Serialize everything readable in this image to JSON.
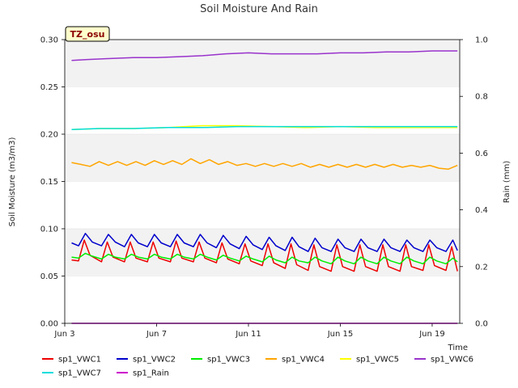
{
  "chart_data": {
    "type": "line",
    "title": "Soil Moisture And Rain",
    "ylabel": "Soil Moisture (m3/m3)",
    "y2label": "Rain (mm)",
    "xlabel": "Time",
    "badge": "TZ_osu",
    "ylim": [
      0.0,
      0.3
    ],
    "y2lim": [
      0.0,
      1.0
    ],
    "xlim": [
      3,
      20.2
    ],
    "yticks": [
      "0.00",
      "0.05",
      "0.10",
      "0.15",
      "0.20",
      "0.25",
      "0.30"
    ],
    "y2ticks": [
      "0.0",
      "0.2",
      "0.4",
      "0.6",
      "0.8",
      "1.0"
    ],
    "xticks": [
      {
        "x": 3,
        "label": "Jun 3"
      },
      {
        "x": 7,
        "label": "Jun 7"
      },
      {
        "x": 11,
        "label": "Jun 11"
      },
      {
        "x": 15,
        "label": "Jun 15"
      },
      {
        "x": 19,
        "label": "Jun 19"
      }
    ],
    "background_bands": true,
    "legend_placement": "bottom",
    "series": [
      {
        "name": "sp1_VWC1",
        "color": "#ee0000",
        "axis": "left",
        "x": [
          3.3,
          3.6,
          3.85,
          4.1,
          4.6,
          4.85,
          5.1,
          5.6,
          5.85,
          6.1,
          6.6,
          6.85,
          7.1,
          7.6,
          7.85,
          8.1,
          8.6,
          8.85,
          9.1,
          9.6,
          9.85,
          10.1,
          10.6,
          10.85,
          11.1,
          11.6,
          11.85,
          12.1,
          12.6,
          12.85,
          13.1,
          13.6,
          13.85,
          14.1,
          14.6,
          14.85,
          15.1,
          15.6,
          15.85,
          16.1,
          16.6,
          16.85,
          17.1,
          17.6,
          17.85,
          18.1,
          18.6,
          18.85,
          19.1,
          19.6,
          19.85,
          20.1
        ],
        "values": [
          0.067,
          0.066,
          0.088,
          0.072,
          0.065,
          0.086,
          0.07,
          0.065,
          0.086,
          0.069,
          0.065,
          0.086,
          0.069,
          0.065,
          0.087,
          0.069,
          0.065,
          0.086,
          0.069,
          0.064,
          0.085,
          0.068,
          0.063,
          0.084,
          0.066,
          0.061,
          0.084,
          0.064,
          0.058,
          0.084,
          0.062,
          0.056,
          0.083,
          0.06,
          0.055,
          0.083,
          0.06,
          0.055,
          0.083,
          0.06,
          0.055,
          0.083,
          0.06,
          0.055,
          0.083,
          0.06,
          0.056,
          0.083,
          0.061,
          0.056,
          0.081,
          0.055
        ]
      },
      {
        "name": "sp1_VWC2",
        "color": "#0000cc",
        "axis": "left",
        "x": [
          3.3,
          3.6,
          3.9,
          4.2,
          4.6,
          4.9,
          5.2,
          5.6,
          5.9,
          6.2,
          6.6,
          6.9,
          7.2,
          7.6,
          7.9,
          8.2,
          8.6,
          8.9,
          9.2,
          9.6,
          9.9,
          10.2,
          10.6,
          10.9,
          11.2,
          11.6,
          11.9,
          12.2,
          12.6,
          12.9,
          13.2,
          13.6,
          13.9,
          14.2,
          14.6,
          14.9,
          15.2,
          15.6,
          15.9,
          16.2,
          16.6,
          16.9,
          17.2,
          17.6,
          17.9,
          18.2,
          18.6,
          18.9,
          19.2,
          19.6,
          19.9,
          20.1
        ],
        "values": [
          0.085,
          0.082,
          0.095,
          0.086,
          0.082,
          0.094,
          0.086,
          0.081,
          0.094,
          0.085,
          0.081,
          0.094,
          0.085,
          0.081,
          0.094,
          0.085,
          0.081,
          0.094,
          0.085,
          0.08,
          0.093,
          0.084,
          0.079,
          0.092,
          0.083,
          0.078,
          0.091,
          0.082,
          0.077,
          0.091,
          0.081,
          0.076,
          0.09,
          0.08,
          0.076,
          0.089,
          0.08,
          0.076,
          0.089,
          0.08,
          0.076,
          0.089,
          0.08,
          0.076,
          0.088,
          0.08,
          0.076,
          0.088,
          0.08,
          0.076,
          0.088,
          0.077
        ]
      },
      {
        "name": "sp1_VWC3",
        "color": "#00ee00",
        "axis": "left",
        "x": [
          3.3,
          3.6,
          3.9,
          4.2,
          4.6,
          4.9,
          5.2,
          5.6,
          5.9,
          6.2,
          6.6,
          6.9,
          7.2,
          7.6,
          7.9,
          8.2,
          8.6,
          8.9,
          9.2,
          9.6,
          9.9,
          10.2,
          10.6,
          10.9,
          11.2,
          11.6,
          11.9,
          12.2,
          12.6,
          12.9,
          13.2,
          13.6,
          13.9,
          14.2,
          14.6,
          14.9,
          15.2,
          15.6,
          15.9,
          16.2,
          16.6,
          16.9,
          17.2,
          17.6,
          17.9,
          18.2,
          18.6,
          18.9,
          19.2,
          19.6,
          19.9,
          20.1
        ],
        "values": [
          0.07,
          0.069,
          0.074,
          0.071,
          0.068,
          0.073,
          0.07,
          0.068,
          0.073,
          0.07,
          0.068,
          0.073,
          0.07,
          0.068,
          0.073,
          0.07,
          0.068,
          0.073,
          0.07,
          0.067,
          0.072,
          0.069,
          0.066,
          0.071,
          0.068,
          0.065,
          0.071,
          0.067,
          0.064,
          0.07,
          0.066,
          0.064,
          0.07,
          0.066,
          0.063,
          0.07,
          0.066,
          0.063,
          0.07,
          0.066,
          0.063,
          0.07,
          0.066,
          0.063,
          0.07,
          0.066,
          0.063,
          0.07,
          0.066,
          0.063,
          0.069,
          0.065
        ]
      },
      {
        "name": "sp1_VWC4",
        "color": "#ffa500",
        "axis": "left",
        "x": [
          3.3,
          3.7,
          4.1,
          4.5,
          4.9,
          5.3,
          5.7,
          6.1,
          6.5,
          6.9,
          7.3,
          7.7,
          8.1,
          8.5,
          8.9,
          9.3,
          9.7,
          10.1,
          10.5,
          10.9,
          11.3,
          11.7,
          12.1,
          12.5,
          12.9,
          13.3,
          13.7,
          14.1,
          14.5,
          14.9,
          15.3,
          15.7,
          16.1,
          16.5,
          16.9,
          17.3,
          17.7,
          18.1,
          18.5,
          18.9,
          19.3,
          19.7,
          20.1
        ],
        "values": [
          0.17,
          0.168,
          0.166,
          0.171,
          0.167,
          0.171,
          0.167,
          0.171,
          0.167,
          0.172,
          0.168,
          0.172,
          0.168,
          0.174,
          0.169,
          0.173,
          0.168,
          0.171,
          0.167,
          0.169,
          0.166,
          0.169,
          0.166,
          0.169,
          0.166,
          0.169,
          0.165,
          0.168,
          0.165,
          0.168,
          0.165,
          0.168,
          0.165,
          0.168,
          0.165,
          0.168,
          0.165,
          0.167,
          0.165,
          0.167,
          0.164,
          0.163,
          0.167
        ]
      },
      {
        "name": "sp1_VWC5",
        "color": "#ffff00",
        "axis": "left",
        "x": [
          3.3,
          4.5,
          6.0,
          7.5,
          9.0,
          10.5,
          12.0,
          13.5,
          15.0,
          16.5,
          18.0,
          19.5,
          20.1
        ],
        "values": [
          0.205,
          0.206,
          0.206,
          0.207,
          0.209,
          0.209,
          0.208,
          0.207,
          0.208,
          0.207,
          0.207,
          0.207,
          0.207
        ]
      },
      {
        "name": "sp1_VWC6",
        "color": "#9933cc",
        "axis": "left",
        "x": [
          3.3,
          4.0,
          5.0,
          6.0,
          7.0,
          8.0,
          9.0,
          10.0,
          11.0,
          12.0,
          13.0,
          14.0,
          15.0,
          16.0,
          17.0,
          18.0,
          19.0,
          20.1
        ],
        "values": [
          0.278,
          0.279,
          0.28,
          0.281,
          0.281,
          0.282,
          0.283,
          0.285,
          0.286,
          0.285,
          0.285,
          0.285,
          0.286,
          0.286,
          0.287,
          0.287,
          0.288,
          0.288
        ]
      },
      {
        "name": "sp1_VWC7",
        "color": "#00dddd",
        "axis": "left",
        "x": [
          3.3,
          4.5,
          6.0,
          7.5,
          9.0,
          10.5,
          12.0,
          13.5,
          15.0,
          16.5,
          18.0,
          19.5,
          20.1
        ],
        "values": [
          0.205,
          0.206,
          0.206,
          0.207,
          0.207,
          0.208,
          0.208,
          0.208,
          0.208,
          0.208,
          0.208,
          0.208,
          0.208
        ]
      },
      {
        "name": "sp1_Rain",
        "color": "#cc00cc",
        "axis": "right",
        "x": [
          3.3,
          20.1
        ],
        "values": [
          0.0,
          0.0
        ]
      }
    ],
    "legend": [
      {
        "name": "sp1_VWC1",
        "color": "#ee0000"
      },
      {
        "name": "sp1_VWC2",
        "color": "#0000cc"
      },
      {
        "name": "sp1_VWC3",
        "color": "#00ee00"
      },
      {
        "name": "sp1_VWC4",
        "color": "#ffa500"
      },
      {
        "name": "sp1_VWC5",
        "color": "#ffff00"
      },
      {
        "name": "sp1_VWC6",
        "color": "#9933cc"
      },
      {
        "name": "sp1_VWC7",
        "color": "#00dddd"
      },
      {
        "name": "sp1_Rain",
        "color": "#cc00cc"
      }
    ]
  }
}
